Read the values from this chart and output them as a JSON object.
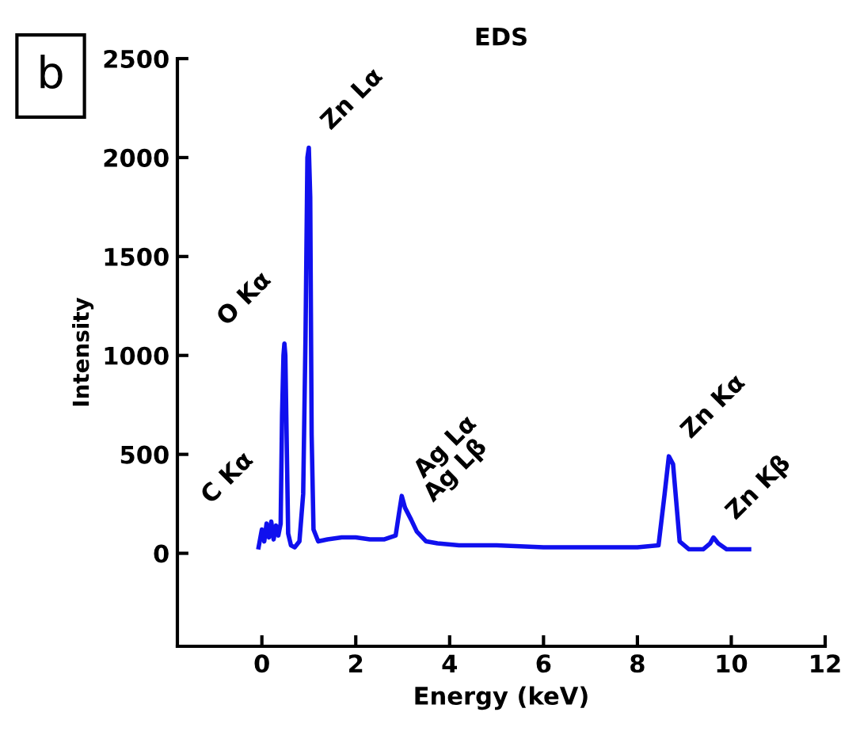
{
  "chart_data": {
    "type": "line",
    "title": "EDS",
    "xlabel": "Energy (keV)",
    "ylabel": "Intensity",
    "xlim": [
      -1.8,
      12
    ],
    "xticks": [
      0,
      2,
      4,
      6,
      8,
      10,
      12
    ],
    "ylim": [
      -470,
      2500
    ],
    "yticks": [
      0,
      500,
      1000,
      1500,
      2000,
      2500
    ],
    "grid": false,
    "legend": false,
    "marker": "none",
    "line_style": "solid",
    "x": [
      -0.07,
      0.0,
      0.05,
      0.1,
      0.15,
      0.2,
      0.25,
      0.3,
      0.35,
      0.4,
      0.43,
      0.46,
      0.48,
      0.5,
      0.52,
      0.56,
      0.62,
      0.7,
      0.8,
      0.88,
      0.93,
      0.97,
      1.0,
      1.03,
      1.06,
      1.1,
      1.2,
      1.4,
      1.7,
      2.0,
      2.3,
      2.6,
      2.85,
      2.92,
      2.98,
      3.05,
      3.18,
      3.3,
      3.5,
      3.74,
      4.2,
      5.0,
      6.0,
      7.0,
      8.0,
      8.45,
      8.58,
      8.67,
      8.76,
      8.9,
      9.1,
      9.4,
      9.55,
      9.62,
      9.72,
      9.9,
      10.1,
      10.38
    ],
    "series": [
      {
        "color": "#1010ee",
        "values": [
          30,
          120,
          60,
          150,
          80,
          160,
          70,
          140,
          90,
          150,
          700,
          1000,
          1060,
          1000,
          700,
          100,
          40,
          30,
          60,
          300,
          1100,
          2000,
          2050,
          1800,
          600,
          120,
          60,
          70,
          80,
          80,
          70,
          70,
          90,
          200,
          290,
          230,
          170,
          110,
          60,
          50,
          40,
          40,
          30,
          30,
          30,
          40,
          300,
          490,
          450,
          60,
          20,
          20,
          50,
          80,
          50,
          20,
          20,
          20
        ]
      }
    ],
    "annotations": [
      {
        "text": "C Kα",
        "x": 0.1,
        "y": 160
      },
      {
        "text": "O Kα",
        "x": 0.48,
        "y": 1060
      },
      {
        "text": "Zn Lα",
        "x": 1.0,
        "y": 2050
      },
      {
        "text": "Ag Lα",
        "x": 2.98,
        "y": 290
      },
      {
        "text": "Ag Lβ",
        "x": 3.18,
        "y": 170
      },
      {
        "text": "Zn Kα",
        "x": 8.67,
        "y": 490
      },
      {
        "text": "Zn Kβ",
        "x": 9.62,
        "y": 80
      },
      "b"
    ]
  }
}
